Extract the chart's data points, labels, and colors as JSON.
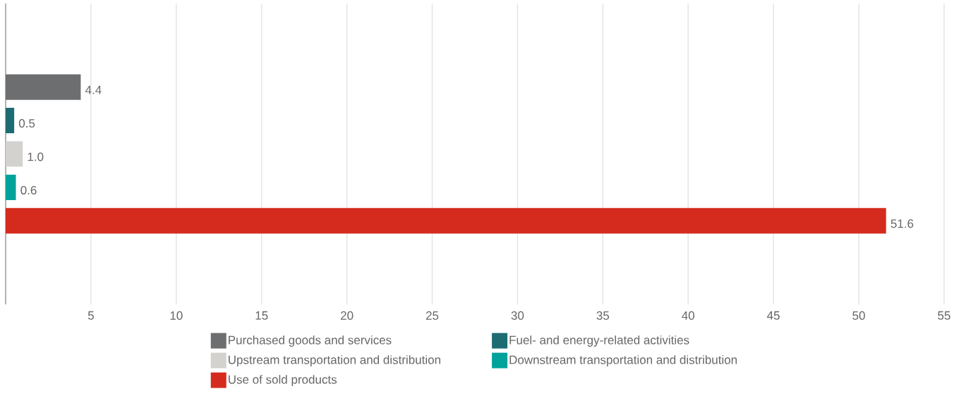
{
  "chart_data": {
    "type": "bar",
    "orientation": "horizontal",
    "categories": [
      null,
      null,
      null,
      null,
      null,
      null,
      null,
      null,
      null
    ],
    "series": [
      {
        "name": "Purchased goods and services",
        "color": "#6d6e6f",
        "values": [
          null,
          null,
          4.4,
          null,
          null,
          null,
          null,
          null,
          null
        ],
        "value_labels": [
          null,
          null,
          "4.4",
          null,
          null,
          null,
          null,
          null,
          null
        ]
      },
      {
        "name": "Fuel- and energy-related activities",
        "color": "#1f6b72",
        "values": [
          null,
          null,
          null,
          0.5,
          null,
          null,
          null,
          null,
          null
        ],
        "value_labels": [
          null,
          null,
          null,
          "0.5",
          null,
          null,
          null,
          null,
          null
        ]
      },
      {
        "name": "Upstream transportation and distribution",
        "color": "#d3d2cf",
        "values": [
          null,
          null,
          null,
          null,
          1.0,
          null,
          null,
          null,
          null
        ],
        "value_labels": [
          null,
          null,
          null,
          null,
          "1.0",
          null,
          null,
          null,
          null
        ]
      },
      {
        "name": "Downstream transportation and distribution",
        "color": "#00a29a",
        "values": [
          null,
          null,
          null,
          null,
          null,
          0.6,
          null,
          null,
          null
        ],
        "value_labels": [
          null,
          null,
          null,
          null,
          null,
          "0.6",
          null,
          null,
          null
        ]
      },
      {
        "name": "Use of sold products",
        "color": "#d52b1e",
        "values": [
          null,
          null,
          null,
          null,
          null,
          null,
          51.6,
          null,
          null
        ],
        "value_labels": [
          null,
          null,
          null,
          null,
          null,
          null,
          "51.6",
          null,
          null
        ]
      }
    ],
    "xlim": [
      0,
      55
    ],
    "xticks": [
      5,
      10,
      15,
      20,
      25,
      30,
      35,
      40,
      45,
      50,
      55
    ],
    "grid": "x",
    "legend": "bottom"
  }
}
